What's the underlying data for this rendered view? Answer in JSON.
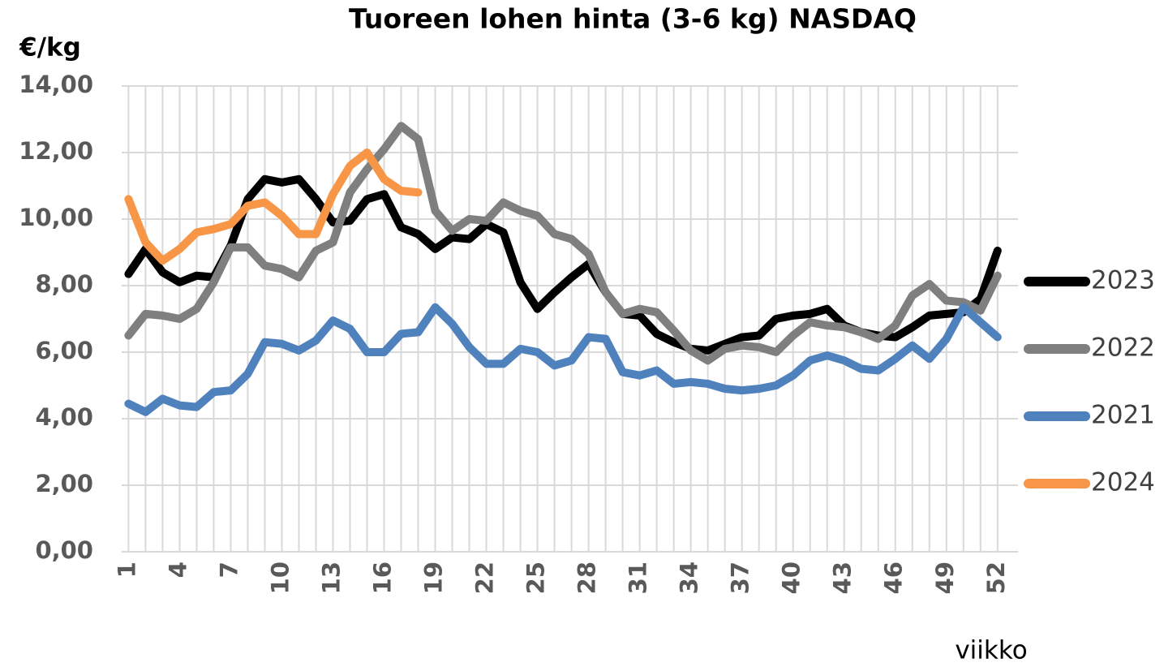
{
  "chart_data": {
    "type": "line",
    "title": "Tuoreen lohen hinta (3-6 kg) NASDAQ",
    "y_label": "€/kg",
    "x_label": "viikko",
    "x": [
      1,
      2,
      3,
      4,
      5,
      6,
      7,
      8,
      9,
      10,
      11,
      12,
      13,
      14,
      15,
      16,
      17,
      18,
      19,
      20,
      21,
      22,
      23,
      24,
      25,
      26,
      27,
      28,
      29,
      30,
      31,
      32,
      33,
      34,
      35,
      36,
      37,
      38,
      39,
      40,
      41,
      42,
      43,
      44,
      45,
      46,
      47,
      48,
      49,
      50,
      51,
      52
    ],
    "xlim": [
      0.6,
      53.2
    ],
    "xticks": [
      1,
      4,
      7,
      10,
      13,
      16,
      19,
      22,
      25,
      28,
      31,
      34,
      37,
      40,
      43,
      46,
      49,
      52
    ],
    "ylim": [
      0,
      14
    ],
    "yticks": [
      {
        "value": 0,
        "label": "0,00"
      },
      {
        "value": 2,
        "label": "2,00"
      },
      {
        "value": 4,
        "label": "4,00"
      },
      {
        "value": 6,
        "label": "6,00"
      },
      {
        "value": 8,
        "label": "8,00"
      },
      {
        "value": 10,
        "label": "10,00"
      },
      {
        "value": 12,
        "label": "12,00"
      },
      {
        "value": 14,
        "label": "14,00"
      }
    ],
    "grid": true,
    "legend": "right",
    "series": [
      {
        "name": "2023",
        "color": "#000000",
        "values": [
          8.35,
          9.1,
          8.4,
          8.1,
          8.3,
          8.25,
          9.2,
          10.6,
          11.2,
          11.1,
          11.2,
          10.6,
          9.9,
          9.95,
          10.6,
          10.75,
          9.75,
          9.55,
          9.1,
          9.45,
          9.4,
          9.85,
          9.6,
          8.1,
          7.3,
          7.8,
          8.25,
          8.65,
          7.8,
          7.15,
          7.1,
          6.55,
          6.3,
          6.1,
          6.05,
          6.25,
          6.45,
          6.5,
          7.0,
          7.1,
          7.15,
          7.3,
          6.8,
          6.6,
          6.5,
          6.45,
          6.75,
          7.1,
          7.15,
          7.2,
          7.6,
          9.05
        ]
      },
      {
        "name": "2022",
        "color": "#7f7f7f",
        "values": [
          6.5,
          7.15,
          7.1,
          7.0,
          7.3,
          8.1,
          9.15,
          9.15,
          8.6,
          8.5,
          8.25,
          9.05,
          9.3,
          10.8,
          11.5,
          12.1,
          12.8,
          12.4,
          10.25,
          9.65,
          10.0,
          9.95,
          10.5,
          10.25,
          10.1,
          9.55,
          9.4,
          8.95,
          7.8,
          7.15,
          7.3,
          7.2,
          6.65,
          6.05,
          5.75,
          6.1,
          6.2,
          6.15,
          6.0,
          6.5,
          6.9,
          6.8,
          6.75,
          6.6,
          6.4,
          6.8,
          7.7,
          8.05,
          7.55,
          7.5,
          7.25,
          8.3
        ]
      },
      {
        "name": "2021",
        "color": "#4f81bd",
        "values": [
          4.45,
          4.2,
          4.6,
          4.4,
          4.35,
          4.8,
          4.85,
          5.35,
          6.3,
          6.25,
          6.05,
          6.35,
          6.95,
          6.7,
          6.0,
          6.0,
          6.55,
          6.6,
          7.35,
          6.85,
          6.15,
          5.65,
          5.65,
          6.1,
          6.0,
          5.6,
          5.75,
          6.45,
          6.4,
          5.4,
          5.3,
          5.45,
          5.05,
          5.1,
          5.05,
          4.9,
          4.85,
          4.9,
          5.0,
          5.3,
          5.75,
          5.9,
          5.75,
          5.5,
          5.45,
          5.8,
          6.2,
          5.8,
          6.4,
          7.35,
          6.9,
          6.45
        ]
      },
      {
        "name": "2024",
        "color": "#f79646",
        "values": [
          10.6,
          9.3,
          8.75,
          9.1,
          9.6,
          9.7,
          9.85,
          10.4,
          10.5,
          10.1,
          9.55,
          9.55,
          10.75,
          11.6,
          12.0,
          11.2,
          10.85,
          10.8,
          null,
          null,
          null,
          null,
          null,
          null,
          null,
          null,
          null,
          null,
          null,
          null,
          null,
          null,
          null,
          null,
          null,
          null,
          null,
          null,
          null,
          null,
          null,
          null,
          null,
          null,
          null,
          null,
          null,
          null,
          null,
          null,
          null,
          null
        ]
      }
    ]
  }
}
